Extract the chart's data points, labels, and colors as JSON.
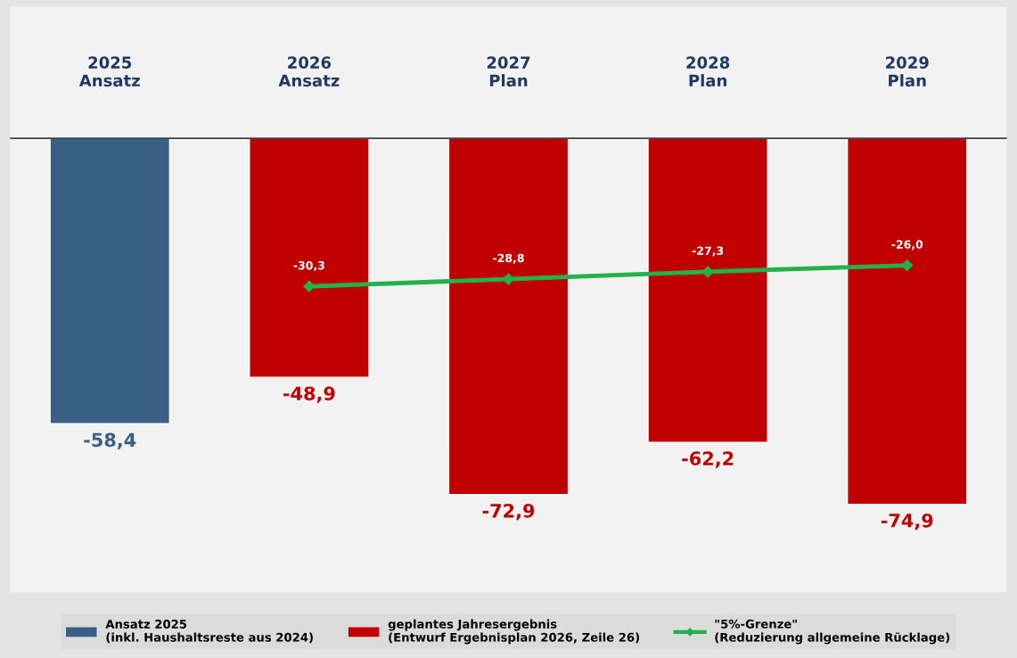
{
  "chart_data": {
    "type": "bar",
    "categories": [
      "2025\nAnsatz",
      "2026\nAnsatz",
      "2027\nPlan",
      "2028\nPlan",
      "2029\nPlan"
    ],
    "series": [
      {
        "name": "Ansatz 2025\n(inkl. Haushaltsreste aus 2024)",
        "color": "#3a5f85",
        "values": [
          -58.4,
          null,
          null,
          null,
          null
        ],
        "value_labels": [
          "-58,4",
          null,
          null,
          null,
          null
        ]
      },
      {
        "name": "geplantes Jahresergebnis\n(Entwurf Ergebnisplan 2026, Zeile 26)",
        "color": "#c00000",
        "values": [
          null,
          -48.9,
          -72.9,
          -62.2,
          -74.9
        ],
        "value_labels": [
          null,
          "-48,9",
          "-72,9",
          "-62,2",
          "-74,9"
        ]
      },
      {
        "name": "\"5%-Grenze\"\n(Reduzierung allgemeine Rücklage)",
        "type": "line",
        "color": "#22b14c",
        "marker": "diamond",
        "values": [
          null,
          -30.3,
          -28.8,
          -27.3,
          -26.0
        ],
        "value_labels": [
          null,
          "-30,3",
          "-28,8",
          "-27,3",
          "-26,0"
        ]
      }
    ],
    "legend": "bottom",
    "grid": false
  }
}
